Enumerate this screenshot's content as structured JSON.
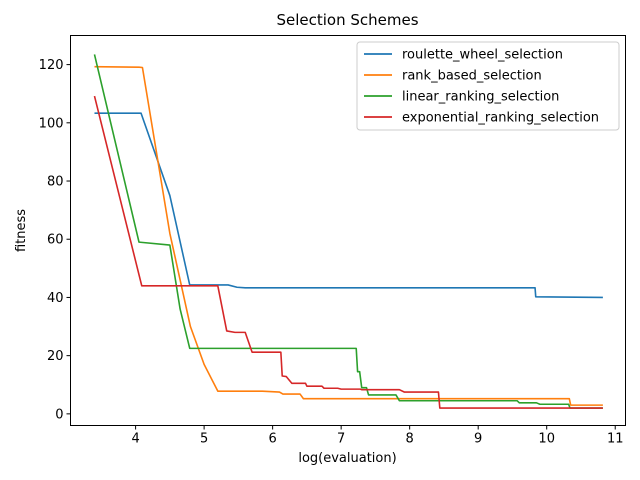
{
  "chart_data": {
    "type": "line",
    "title": "Selection Schemes",
    "xlabel": "log(evaluation)",
    "ylabel": "fitness",
    "xlim": [
      3.05,
      11.15
    ],
    "ylim": [
      -4,
      130
    ],
    "xticks": [
      4,
      5,
      6,
      7,
      8,
      9,
      10,
      11
    ],
    "yticks": [
      0,
      20,
      40,
      60,
      80,
      100,
      120
    ],
    "grid": false,
    "legend_position": "top-right",
    "series": [
      {
        "name": "roulette_wheel_selection",
        "color": "#1f77b4",
        "points": [
          [
            3.4,
            103.3
          ],
          [
            4.08,
            103.3
          ],
          [
            4.5,
            75.0
          ],
          [
            4.79,
            44.3
          ],
          [
            5.35,
            44.3
          ],
          [
            5.48,
            43.5
          ],
          [
            5.6,
            43.3
          ],
          [
            9.83,
            43.3
          ],
          [
            9.84,
            40.2
          ],
          [
            10.82,
            40.0
          ]
        ]
      },
      {
        "name": "rank_based_selection",
        "color": "#ff7f0e",
        "points": [
          [
            3.4,
            119.3
          ],
          [
            4.05,
            119.1
          ],
          [
            4.1,
            119.0
          ],
          [
            4.5,
            62.0
          ],
          [
            4.8,
            30.0
          ],
          [
            5.0,
            17.0
          ],
          [
            5.2,
            7.8
          ],
          [
            5.85,
            7.8
          ],
          [
            6.1,
            7.5
          ],
          [
            6.15,
            6.8
          ],
          [
            6.4,
            6.8
          ],
          [
            6.45,
            5.2
          ],
          [
            10.33,
            5.2
          ],
          [
            10.35,
            3.0
          ],
          [
            10.82,
            3.0
          ]
        ]
      },
      {
        "name": "linear_ranking_selection",
        "color": "#2ca02c",
        "points": [
          [
            3.4,
            123.5
          ],
          [
            4.05,
            59.0
          ],
          [
            4.5,
            58.0
          ],
          [
            4.65,
            36.0
          ],
          [
            4.79,
            22.5
          ],
          [
            7.22,
            22.5
          ],
          [
            7.24,
            14.5
          ],
          [
            7.27,
            14.5
          ],
          [
            7.3,
            9.0
          ],
          [
            7.37,
            9.0
          ],
          [
            7.4,
            6.5
          ],
          [
            7.8,
            6.5
          ],
          [
            7.85,
            4.5
          ],
          [
            9.57,
            4.5
          ],
          [
            9.6,
            3.8
          ],
          [
            9.85,
            3.8
          ],
          [
            9.9,
            3.3
          ],
          [
            10.32,
            3.3
          ],
          [
            10.34,
            2.0
          ],
          [
            10.82,
            2.0
          ]
        ]
      },
      {
        "name": "exponential_ranking_selection",
        "color": "#d62728",
        "points": [
          [
            3.4,
            109.2
          ],
          [
            4.09,
            44.0
          ],
          [
            5.2,
            44.0
          ],
          [
            5.33,
            28.5
          ],
          [
            5.45,
            28.0
          ],
          [
            5.6,
            28.0
          ],
          [
            5.7,
            21.2
          ],
          [
            6.12,
            21.2
          ],
          [
            6.14,
            13.0
          ],
          [
            6.2,
            12.8
          ],
          [
            6.28,
            10.5
          ],
          [
            6.48,
            10.5
          ],
          [
            6.5,
            9.5
          ],
          [
            6.72,
            9.5
          ],
          [
            6.75,
            8.8
          ],
          [
            6.95,
            8.8
          ],
          [
            7.0,
            8.5
          ],
          [
            7.28,
            8.5
          ],
          [
            7.3,
            8.3
          ],
          [
            7.5,
            8.3
          ],
          [
            7.85,
            8.3
          ],
          [
            7.92,
            7.5
          ],
          [
            8.42,
            7.5
          ],
          [
            8.44,
            2.0
          ],
          [
            10.82,
            2.0
          ]
        ]
      }
    ]
  }
}
